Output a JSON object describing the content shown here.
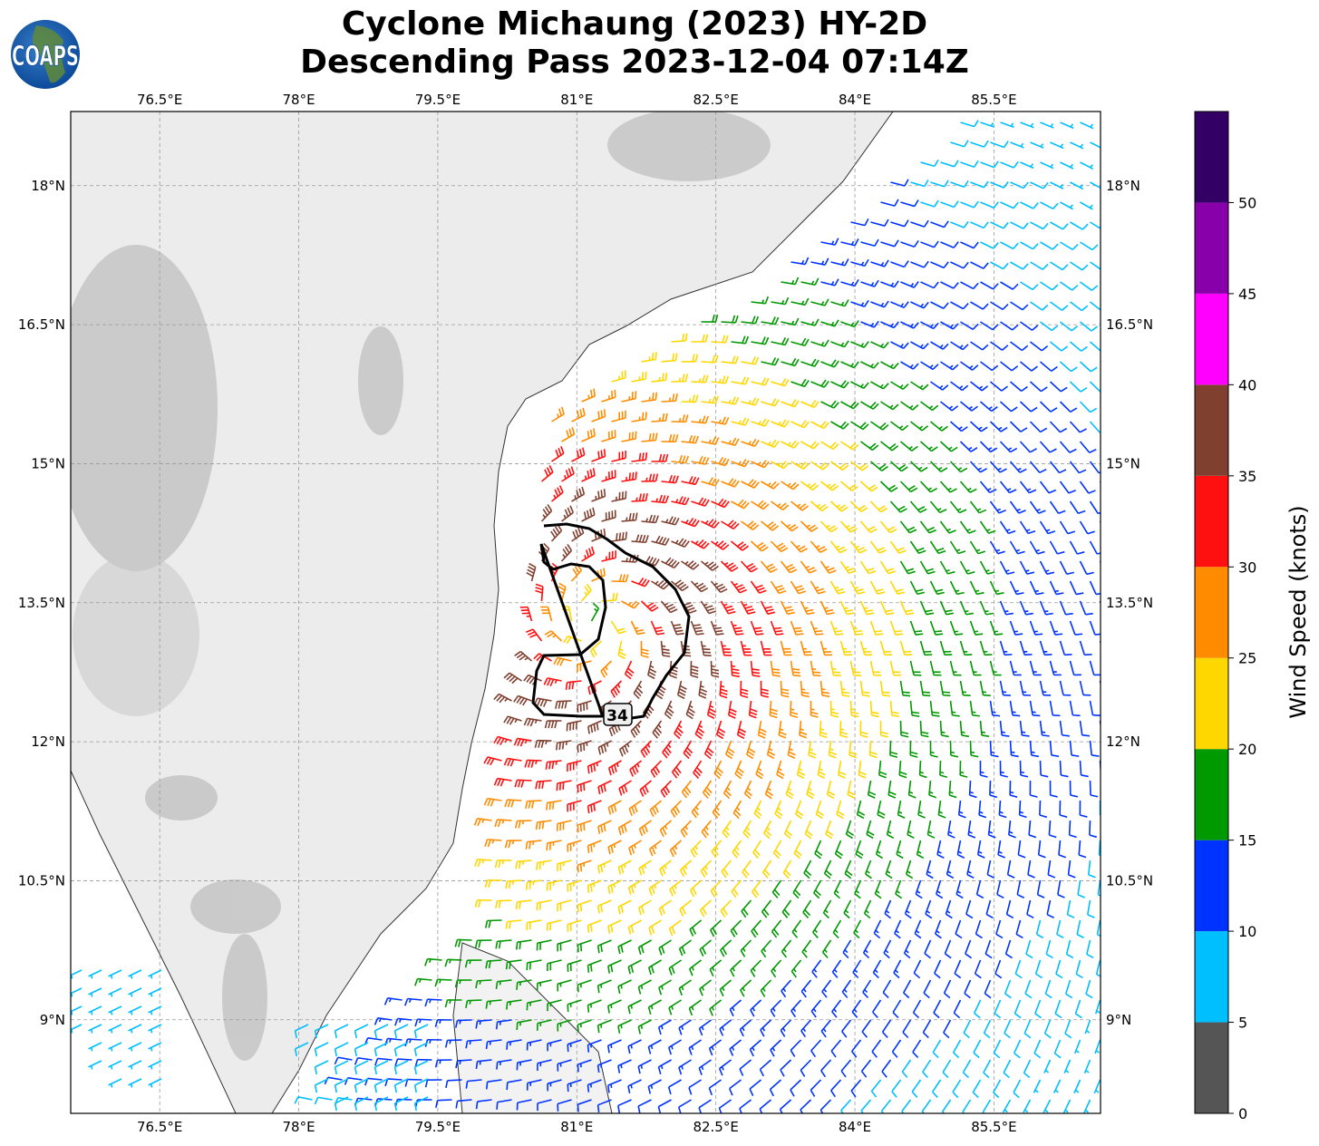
{
  "title": {
    "line1": "Cyclone Michaung (2023) HY-2D",
    "line2": "Descending Pass 2023-12-04 07:14Z"
  },
  "logo": {
    "text": "COAPS"
  },
  "map": {
    "lon_ticks": [
      "76.5°E",
      "78°E",
      "79.5°E",
      "81°E",
      "82.5°E",
      "84°E",
      "85.5°E"
    ],
    "lat_ticks": [
      "18°N",
      "16.5°N",
      "15°N",
      "13.5°N",
      "12°N",
      "10.5°N",
      "9°N"
    ],
    "lon_values": [
      76.5,
      78,
      79.5,
      81,
      82.5,
      84,
      85.5
    ],
    "lat_values": [
      18,
      16.5,
      15,
      13.5,
      12,
      10.5,
      9
    ],
    "extent": {
      "lon": [
        75.54,
        86.65
      ],
      "lat": [
        7.99,
        18.8
      ]
    },
    "contour_label": "34",
    "gridlines": true
  },
  "colorbar": {
    "label": "Wind Speed (knots)",
    "ticks": [
      "0",
      "5",
      "10",
      "15",
      "20",
      "25",
      "30",
      "35",
      "40",
      "45",
      "50"
    ],
    "range": [
      0,
      55
    ],
    "colors": [
      "#555555",
      "#00bfff",
      "#0033ff",
      "#009900",
      "#ffd700",
      "#ff8c00",
      "#ff1010",
      "#804030",
      "#ff00ff",
      "#8800aa",
      "#330066"
    ]
  }
}
